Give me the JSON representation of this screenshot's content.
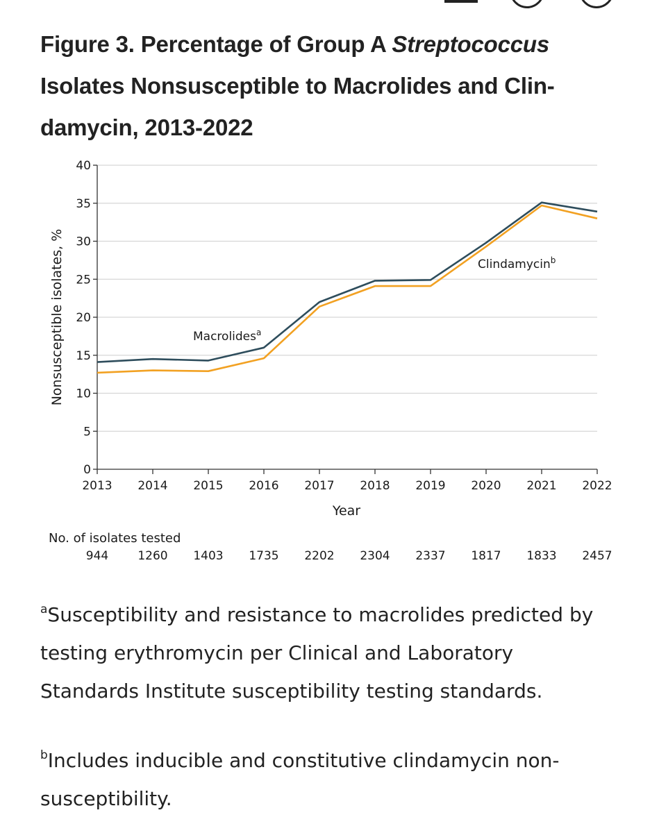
{
  "figure": {
    "title_prefix": "Figure 3.  Percentage of Group A ",
    "title_italic": "Streptococcus",
    "title_suffix": " Isolates Nonsusceptible to Macrolides and Clin-damycin, 2013-2022"
  },
  "chart_data": {
    "type": "line",
    "x": [
      2013,
      2014,
      2015,
      2016,
      2017,
      2018,
      2019,
      2020,
      2021,
      2022
    ],
    "series": [
      {
        "name": "Macrolides",
        "label_sup": "a",
        "color": "#2e4d5c",
        "values": [
          14.1,
          14.5,
          14.3,
          16.0,
          22.0,
          24.8,
          24.9,
          29.8,
          35.1,
          33.9
        ]
      },
      {
        "name": "Clindamycin",
        "label_sup": "b",
        "color": "#f2a122",
        "values": [
          12.7,
          13.0,
          12.9,
          14.6,
          21.4,
          24.1,
          24.1,
          29.3,
          34.7,
          33.0
        ]
      }
    ],
    "xlabel": "Year",
    "ylabel": "Nonsusceptible isolates, %",
    "ylim": [
      0,
      40
    ],
    "yticks": [
      0,
      5,
      10,
      15,
      20,
      25,
      30,
      35,
      40
    ],
    "grid": true,
    "table_header": "No. of isolates tested",
    "isolates_tested": [
      944,
      1260,
      1403,
      1735,
      2202,
      2304,
      2337,
      1817,
      1833,
      2457
    ]
  },
  "footnotes": {
    "a_marker": "a",
    "a_text": "Susceptibility and resistance to macrolides predicted by testing erythromycin per Clinical and Laboratory Standards Institute susceptibility testing standards.",
    "b_marker": "b",
    "b_text": "Includes inducible and constitutive clindamycin non-susceptibility."
  }
}
